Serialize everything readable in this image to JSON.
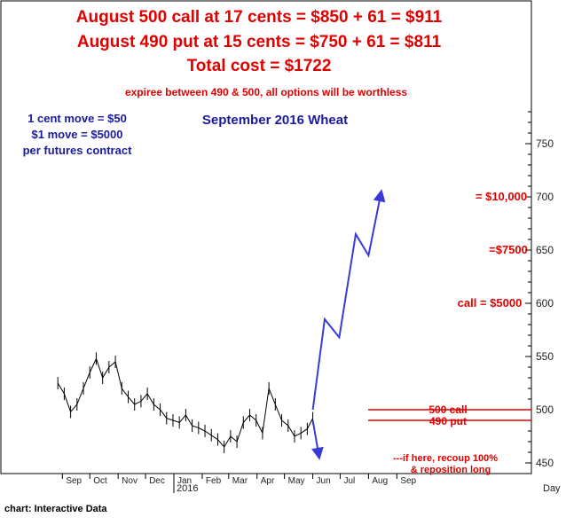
{
  "headline": {
    "line1": "August 500 call at 17 cents = $850 + 61 = $911",
    "line2": "August 490 put at 15 cents = $750 + 61 = $811",
    "line3": "Total cost = $1722",
    "note": "expiree between 490 & 500, all options will be worthless"
  },
  "info_box": {
    "line1": "1 cent move = $50",
    "line2": "$1 move = $5000",
    "line3": "per futures contract"
  },
  "footer": {
    "credit": "chart: Interactive Data"
  },
  "chart_data": {
    "type": "line",
    "title": "September 2016 Wheat",
    "x_ticks": [
      "Sep",
      "Oct",
      "Nov",
      "Dec",
      "Jan",
      "Feb",
      "Mar",
      "Apr",
      "May",
      "Jun",
      "Jul",
      "Aug",
      "Sep"
    ],
    "x_year_label": "2016",
    "x_unit_label": "Day",
    "y_ticks": [
      "450",
      "500",
      "550",
      "600",
      "650",
      "700",
      "750"
    ],
    "ylim": [
      440,
      790
    ],
    "price_series": {
      "name": "",
      "x": [
        "2015-08-27",
        "2015-09-03",
        "2015-09-10",
        "2015-09-17",
        "2015-09-24",
        "2015-10-01",
        "2015-10-08",
        "2015-10-15",
        "2015-10-22",
        "2015-10-29",
        "2015-11-05",
        "2015-11-12",
        "2015-11-19",
        "2015-11-26",
        "2015-12-03",
        "2015-12-10",
        "2015-12-17",
        "2015-12-24",
        "2015-12-31",
        "2016-01-07",
        "2016-01-14",
        "2016-01-21",
        "2016-01-28",
        "2016-02-04",
        "2016-02-11",
        "2016-02-18",
        "2016-02-25",
        "2016-03-03",
        "2016-03-10",
        "2016-03-17",
        "2016-03-24",
        "2016-03-31",
        "2016-04-07",
        "2016-04-14",
        "2016-04-21",
        "2016-04-28",
        "2016-05-05",
        "2016-05-12",
        "2016-05-19",
        "2016-05-26",
        "2016-06-01"
      ],
      "y": [
        525,
        515,
        498,
        505,
        520,
        535,
        548,
        530,
        540,
        545,
        520,
        512,
        505,
        508,
        515,
        505,
        500,
        492,
        490,
        488,
        495,
        485,
        483,
        480,
        476,
        472,
        465,
        475,
        470,
        488,
        495,
        490,
        478,
        520,
        505,
        490,
        485,
        475,
        478,
        482,
        492
      ]
    },
    "projection": {
      "x": [
        "2016-06-01",
        "2016-06-14",
        "2016-06-30",
        "2016-07-18",
        "2016-08-01",
        "2016-08-15"
      ],
      "y": [
        500,
        585,
        568,
        665,
        645,
        705
      ]
    },
    "down_arrow": {
      "x": [
        "2016-06-01",
        "2016-06-08"
      ],
      "y": [
        490,
        455
      ]
    },
    "levels": [
      {
        "name": "500 call",
        "value": 500
      },
      {
        "name": "490 put",
        "value": 490
      }
    ],
    "annotations": [
      {
        "text": "= $10,000",
        "y": 700
      },
      {
        "text": "=$7500",
        "y": 650
      },
      {
        "text": "call = $5000",
        "y": 600
      },
      {
        "text": "---if here, recoup 100%",
        "y": 455
      },
      {
        "text": "& reposition long",
        "y": 444
      }
    ],
    "colors": {
      "price": "#000000",
      "projection": "#3a3ad6",
      "levels": "#e00000",
      "annotation": "#e00000"
    }
  }
}
